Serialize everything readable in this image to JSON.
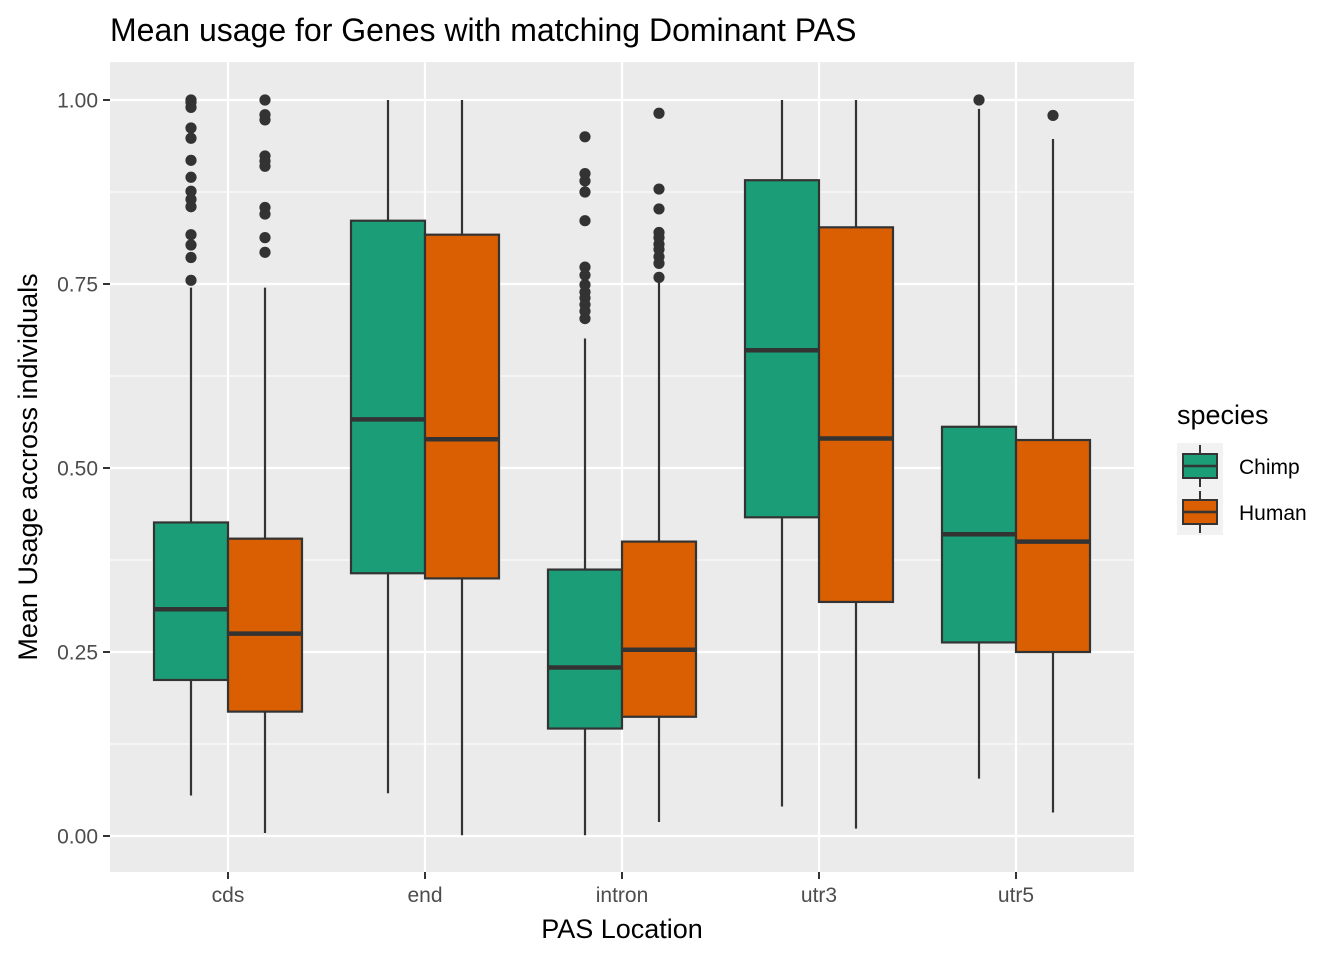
{
  "chart_data": {
    "type": "boxplot",
    "title": "Mean usage for Genes with matching Dominant PAS",
    "xlabel": "PAS Location",
    "ylabel": "Mean Usage accross individuals",
    "categories": [
      "cds",
      "end",
      "intron",
      "utr3",
      "utr5"
    ],
    "ylim": [
      -0.05,
      1.05
    ],
    "yticks": [
      0.0,
      0.25,
      0.5,
      0.75,
      1.0
    ],
    "ytick_labels": [
      "0.00",
      "0.25",
      "0.50",
      "0.75",
      "1.00"
    ],
    "grid": true,
    "legend": {
      "title": "species",
      "position": "right"
    },
    "series": [
      {
        "name": "Chimp",
        "color": "#1b9e77",
        "boxes": [
          {
            "category": "cds",
            "whisker_low": 0.055,
            "q1": 0.212,
            "median": 0.308,
            "q3": 0.426,
            "whisker_high": 0.745,
            "outliers": [
              1.0,
              0.997,
              0.99,
              0.962,
              0.948,
              0.918,
              0.895,
              0.876,
              0.865,
              0.855,
              0.817,
              0.803,
              0.786,
              0.755
            ]
          },
          {
            "category": "end",
            "whisker_low": 0.058,
            "q1": 0.357,
            "median": 0.566,
            "q3": 0.836,
            "whisker_high": 1.0,
            "outliers": []
          },
          {
            "category": "intron",
            "whisker_low": 0.001,
            "q1": 0.146,
            "median": 0.229,
            "q3": 0.362,
            "whisker_high": 0.676,
            "outliers": [
              0.95,
              0.9,
              0.89,
              0.875,
              0.836,
              0.773,
              0.762,
              0.749,
              0.739,
              0.731,
              0.722,
              0.713,
              0.703
            ]
          },
          {
            "category": "utr3",
            "whisker_low": 0.04,
            "q1": 0.433,
            "median": 0.66,
            "q3": 0.891,
            "whisker_high": 1.0,
            "outliers": []
          },
          {
            "category": "utr5",
            "whisker_low": 0.078,
            "q1": 0.263,
            "median": 0.41,
            "q3": 0.556,
            "whisker_high": 0.988,
            "outliers": [
              1.0
            ]
          }
        ]
      },
      {
        "name": "Human",
        "color": "#d95f02",
        "boxes": [
          {
            "category": "cds",
            "whisker_low": 0.004,
            "q1": 0.169,
            "median": 0.275,
            "q3": 0.404,
            "whisker_high": 0.745,
            "outliers": [
              1.0,
              0.98,
              0.973,
              0.924,
              0.917,
              0.91,
              0.854,
              0.845,
              0.813,
              0.793
            ]
          },
          {
            "category": "end",
            "whisker_low": 0.001,
            "q1": 0.35,
            "median": 0.539,
            "q3": 0.817,
            "whisker_high": 1.0,
            "outliers": []
          },
          {
            "category": "intron",
            "whisker_low": 0.019,
            "q1": 0.162,
            "median": 0.253,
            "q3": 0.4,
            "whisker_high": 0.757,
            "outliers": [
              0.982,
              0.879,
              0.852,
              0.82,
              0.813,
              0.804,
              0.797,
              0.787,
              0.778,
              0.759
            ]
          },
          {
            "category": "utr3",
            "whisker_low": 0.01,
            "q1": 0.318,
            "median": 0.54,
            "q3": 0.827,
            "whisker_high": 1.0,
            "outliers": []
          },
          {
            "category": "utr5",
            "whisker_low": 0.032,
            "q1": 0.25,
            "median": 0.4,
            "q3": 0.538,
            "whisker_high": 0.947,
            "outliers": [
              0.979
            ]
          }
        ]
      }
    ]
  }
}
